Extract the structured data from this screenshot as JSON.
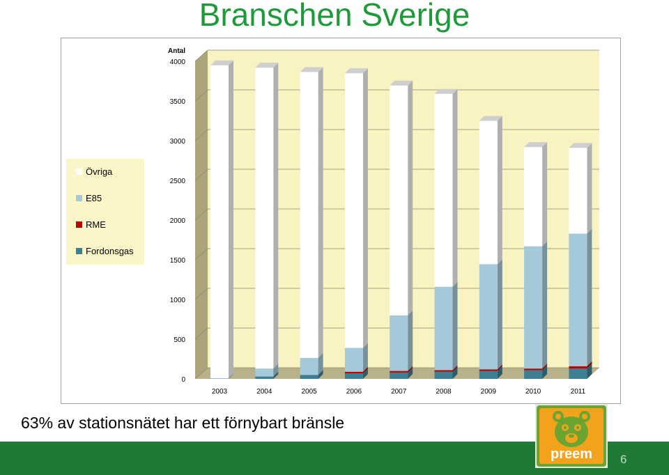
{
  "title": "Branschen Sverige",
  "caption": "63% av stationsnätet har ett förnybart bränsle",
  "page_number": "6",
  "logo": {
    "text": "preem",
    "icon": "bear-face-icon",
    "bg_color": "#f3a21b",
    "frame_color": "#6aa431"
  },
  "colors": {
    "title": "#1f9a3a",
    "footer": "#1f7a35",
    "wall": "#f8f3c0",
    "side_wall": "#aca57a",
    "floor": "#b8b18a"
  },
  "chart_data": {
    "type": "bar",
    "stacked": true,
    "three_d": true,
    "ylabel": "Antal",
    "ylim": [
      0,
      4000
    ],
    "yticks": [
      0,
      500,
      1000,
      1500,
      2000,
      2500,
      3000,
      3500,
      4000
    ],
    "grid": true,
    "legend_position": "left",
    "categories": [
      "2003",
      "2004",
      "2005",
      "2006",
      "2007",
      "2008",
      "2009",
      "2010",
      "2011"
    ],
    "series": [
      {
        "name": "Fordonsgas",
        "color": "#3d7f94",
        "values": [
          5,
          30,
          50,
          70,
          80,
          90,
          100,
          110,
          130
        ]
      },
      {
        "name": "RME",
        "color": "#c00000",
        "values": [
          0,
          0,
          0,
          20,
          20,
          20,
          20,
          20,
          30
        ]
      },
      {
        "name": "E85",
        "color": "#a4c9d8",
        "values": [
          0,
          100,
          215,
          300,
          700,
          1050,
          1325,
          1540,
          1670
        ]
      },
      {
        "name": "Övriga",
        "color": "#ffffff",
        "values": [
          3945,
          3790,
          3600,
          3460,
          2895,
          2430,
          1805,
          1250,
          1080
        ]
      }
    ]
  }
}
